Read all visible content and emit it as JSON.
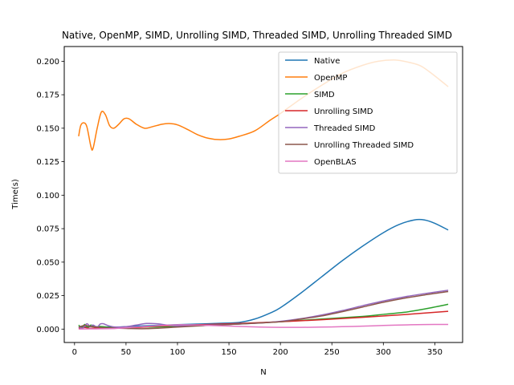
{
  "chart_data": {
    "type": "line",
    "title": "Native, OpenMP, SIMD, Unrolling SIMD, Threaded SIMD, Unrolling Threaded SIMD",
    "xlabel": "N",
    "ylabel": "Time(s)",
    "xlim": [
      -10,
      377
    ],
    "ylim": [
      -0.01,
      0.211
    ],
    "xticks": [
      0,
      50,
      100,
      150,
      200,
      250,
      300,
      350
    ],
    "yticks": [
      0.0,
      0.025,
      0.05,
      0.075,
      0.1,
      0.125,
      0.15,
      0.175,
      0.2
    ],
    "ytick_labels": [
      "0.000",
      "0.025",
      "0.050",
      "0.075",
      "0.100",
      "0.125",
      "0.150",
      "0.175",
      "0.200"
    ],
    "legend_position": "top-right",
    "series": [
      {
        "name": "Native",
        "color": "#1f77b4",
        "points": [
          [
            4,
            0.0015
          ],
          [
            20,
            0.0018
          ],
          [
            40,
            0.0015
          ],
          [
            60,
            0.0022
          ],
          [
            80,
            0.0028
          ],
          [
            100,
            0.0033
          ],
          [
            120,
            0.0038
          ],
          [
            140,
            0.0043
          ],
          [
            160,
            0.005
          ],
          [
            175,
            0.0075
          ],
          [
            190,
            0.012
          ],
          [
            200,
            0.016
          ],
          [
            220,
            0.027
          ],
          [
            240,
            0.039
          ],
          [
            260,
            0.051
          ],
          [
            280,
            0.062
          ],
          [
            300,
            0.072
          ],
          [
            315,
            0.078
          ],
          [
            330,
            0.0815
          ],
          [
            340,
            0.0815
          ],
          [
            350,
            0.079
          ],
          [
            363,
            0.074
          ]
        ]
      },
      {
        "name": "OpenMP",
        "color": "#ff7f0e",
        "points": [
          [
            4,
            0.144
          ],
          [
            6,
            0.152
          ],
          [
            9,
            0.154
          ],
          [
            12,
            0.151
          ],
          [
            16,
            0.136
          ],
          [
            18,
            0.135
          ],
          [
            22,
            0.15
          ],
          [
            26,
            0.162
          ],
          [
            30,
            0.16
          ],
          [
            34,
            0.152
          ],
          [
            38,
            0.15
          ],
          [
            43,
            0.153
          ],
          [
            48,
            0.157
          ],
          [
            53,
            0.157
          ],
          [
            60,
            0.153
          ],
          [
            68,
            0.15
          ],
          [
            75,
            0.151
          ],
          [
            85,
            0.153
          ],
          [
            92,
            0.1535
          ],
          [
            100,
            0.1525
          ],
          [
            110,
            0.149
          ],
          [
            120,
            0.145
          ],
          [
            130,
            0.1425
          ],
          [
            140,
            0.1415
          ],
          [
            150,
            0.142
          ],
          [
            160,
            0.144
          ],
          [
            175,
            0.148
          ],
          [
            190,
            0.156
          ],
          [
            200,
            0.161
          ],
          [
            220,
            0.172
          ],
          [
            240,
            0.182
          ],
          [
            260,
            0.191
          ],
          [
            280,
            0.197
          ],
          [
            295,
            0.2
          ],
          [
            310,
            0.201
          ],
          [
            320,
            0.2
          ],
          [
            335,
            0.197
          ],
          [
            345,
            0.192
          ],
          [
            355,
            0.186
          ],
          [
            363,
            0.181
          ]
        ]
      },
      {
        "name": "SIMD",
        "color": "#2ca02c",
        "points": [
          [
            4,
            0.003
          ],
          [
            7,
            0.001
          ],
          [
            10,
            0.0035
          ],
          [
            13,
            0.0012
          ],
          [
            16,
            0.003
          ],
          [
            20,
            0.0015
          ],
          [
            25,
            0.002
          ],
          [
            35,
            0.0012
          ],
          [
            50,
            0.0012
          ],
          [
            70,
            0.0015
          ],
          [
            100,
            0.002
          ],
          [
            150,
            0.0035
          ],
          [
            200,
            0.0055
          ],
          [
            240,
            0.0075
          ],
          [
            280,
            0.0095
          ],
          [
            300,
            0.011
          ],
          [
            320,
            0.0125
          ],
          [
            340,
            0.015
          ],
          [
            363,
            0.0185
          ]
        ]
      },
      {
        "name": "Unrolling SIMD",
        "color": "#d62728",
        "points": [
          [
            4,
            0.0005
          ],
          [
            10,
            0.0012
          ],
          [
            15,
            0.0005
          ],
          [
            25,
            0.0008
          ],
          [
            40,
            0.0006
          ],
          [
            60,
            0.0012
          ],
          [
            80,
            0.0022
          ],
          [
            100,
            0.0028
          ],
          [
            130,
            0.0035
          ],
          [
            160,
            0.0042
          ],
          [
            200,
            0.0055
          ],
          [
            240,
            0.007
          ],
          [
            280,
            0.0088
          ],
          [
            320,
            0.0108
          ],
          [
            363,
            0.0133
          ]
        ]
      },
      {
        "name": "Threaded SIMD",
        "color": "#9467bd",
        "points": [
          [
            4,
            0.0015
          ],
          [
            8,
            0.0008
          ],
          [
            12,
            0.004
          ],
          [
            15,
            0.002
          ],
          [
            18,
            0.003
          ],
          [
            22,
            0.0015
          ],
          [
            25,
            0.0038
          ],
          [
            28,
            0.004
          ],
          [
            33,
            0.0025
          ],
          [
            40,
            0.0015
          ],
          [
            50,
            0.0018
          ],
          [
            60,
            0.003
          ],
          [
            70,
            0.0042
          ],
          [
            80,
            0.004
          ],
          [
            90,
            0.003
          ],
          [
            100,
            0.0025
          ],
          [
            120,
            0.0028
          ],
          [
            150,
            0.0035
          ],
          [
            180,
            0.0045
          ],
          [
            200,
            0.0058
          ],
          [
            220,
            0.0078
          ],
          [
            240,
            0.0105
          ],
          [
            260,
            0.0138
          ],
          [
            280,
            0.0175
          ],
          [
            300,
            0.021
          ],
          [
            320,
            0.024
          ],
          [
            340,
            0.0265
          ],
          [
            363,
            0.029
          ]
        ]
      },
      {
        "name": "Unrolling Threaded SIMD",
        "color": "#8c564b",
        "points": [
          [
            4,
            0.0015
          ],
          [
            10,
            0.0028
          ],
          [
            15,
            0.002
          ],
          [
            20,
            0.0015
          ],
          [
            30,
            0.001
          ],
          [
            50,
            0.0005
          ],
          [
            70,
            0.0003
          ],
          [
            100,
            0.0015
          ],
          [
            130,
            0.0028
          ],
          [
            160,
            0.0038
          ],
          [
            200,
            0.0055
          ],
          [
            220,
            0.0075
          ],
          [
            240,
            0.0098
          ],
          [
            260,
            0.013
          ],
          [
            280,
            0.0165
          ],
          [
            300,
            0.02
          ],
          [
            320,
            0.023
          ],
          [
            340,
            0.0255
          ],
          [
            363,
            0.028
          ]
        ]
      },
      {
        "name": "OpenBLAS",
        "color": "#e377c2",
        "points": [
          [
            4,
            0.0
          ],
          [
            20,
            0.0002
          ],
          [
            40,
            0.0005
          ],
          [
            60,
            0.0015
          ],
          [
            80,
            0.0025
          ],
          [
            100,
            0.0032
          ],
          [
            120,
            0.003
          ],
          [
            140,
            0.0025
          ],
          [
            160,
            0.002
          ],
          [
            180,
            0.0015
          ],
          [
            200,
            0.0013
          ],
          [
            220,
            0.0013
          ],
          [
            240,
            0.0015
          ],
          [
            260,
            0.0018
          ],
          [
            280,
            0.0022
          ],
          [
            300,
            0.0027
          ],
          [
            320,
            0.0031
          ],
          [
            340,
            0.0034
          ],
          [
            363,
            0.0035
          ]
        ]
      }
    ]
  }
}
